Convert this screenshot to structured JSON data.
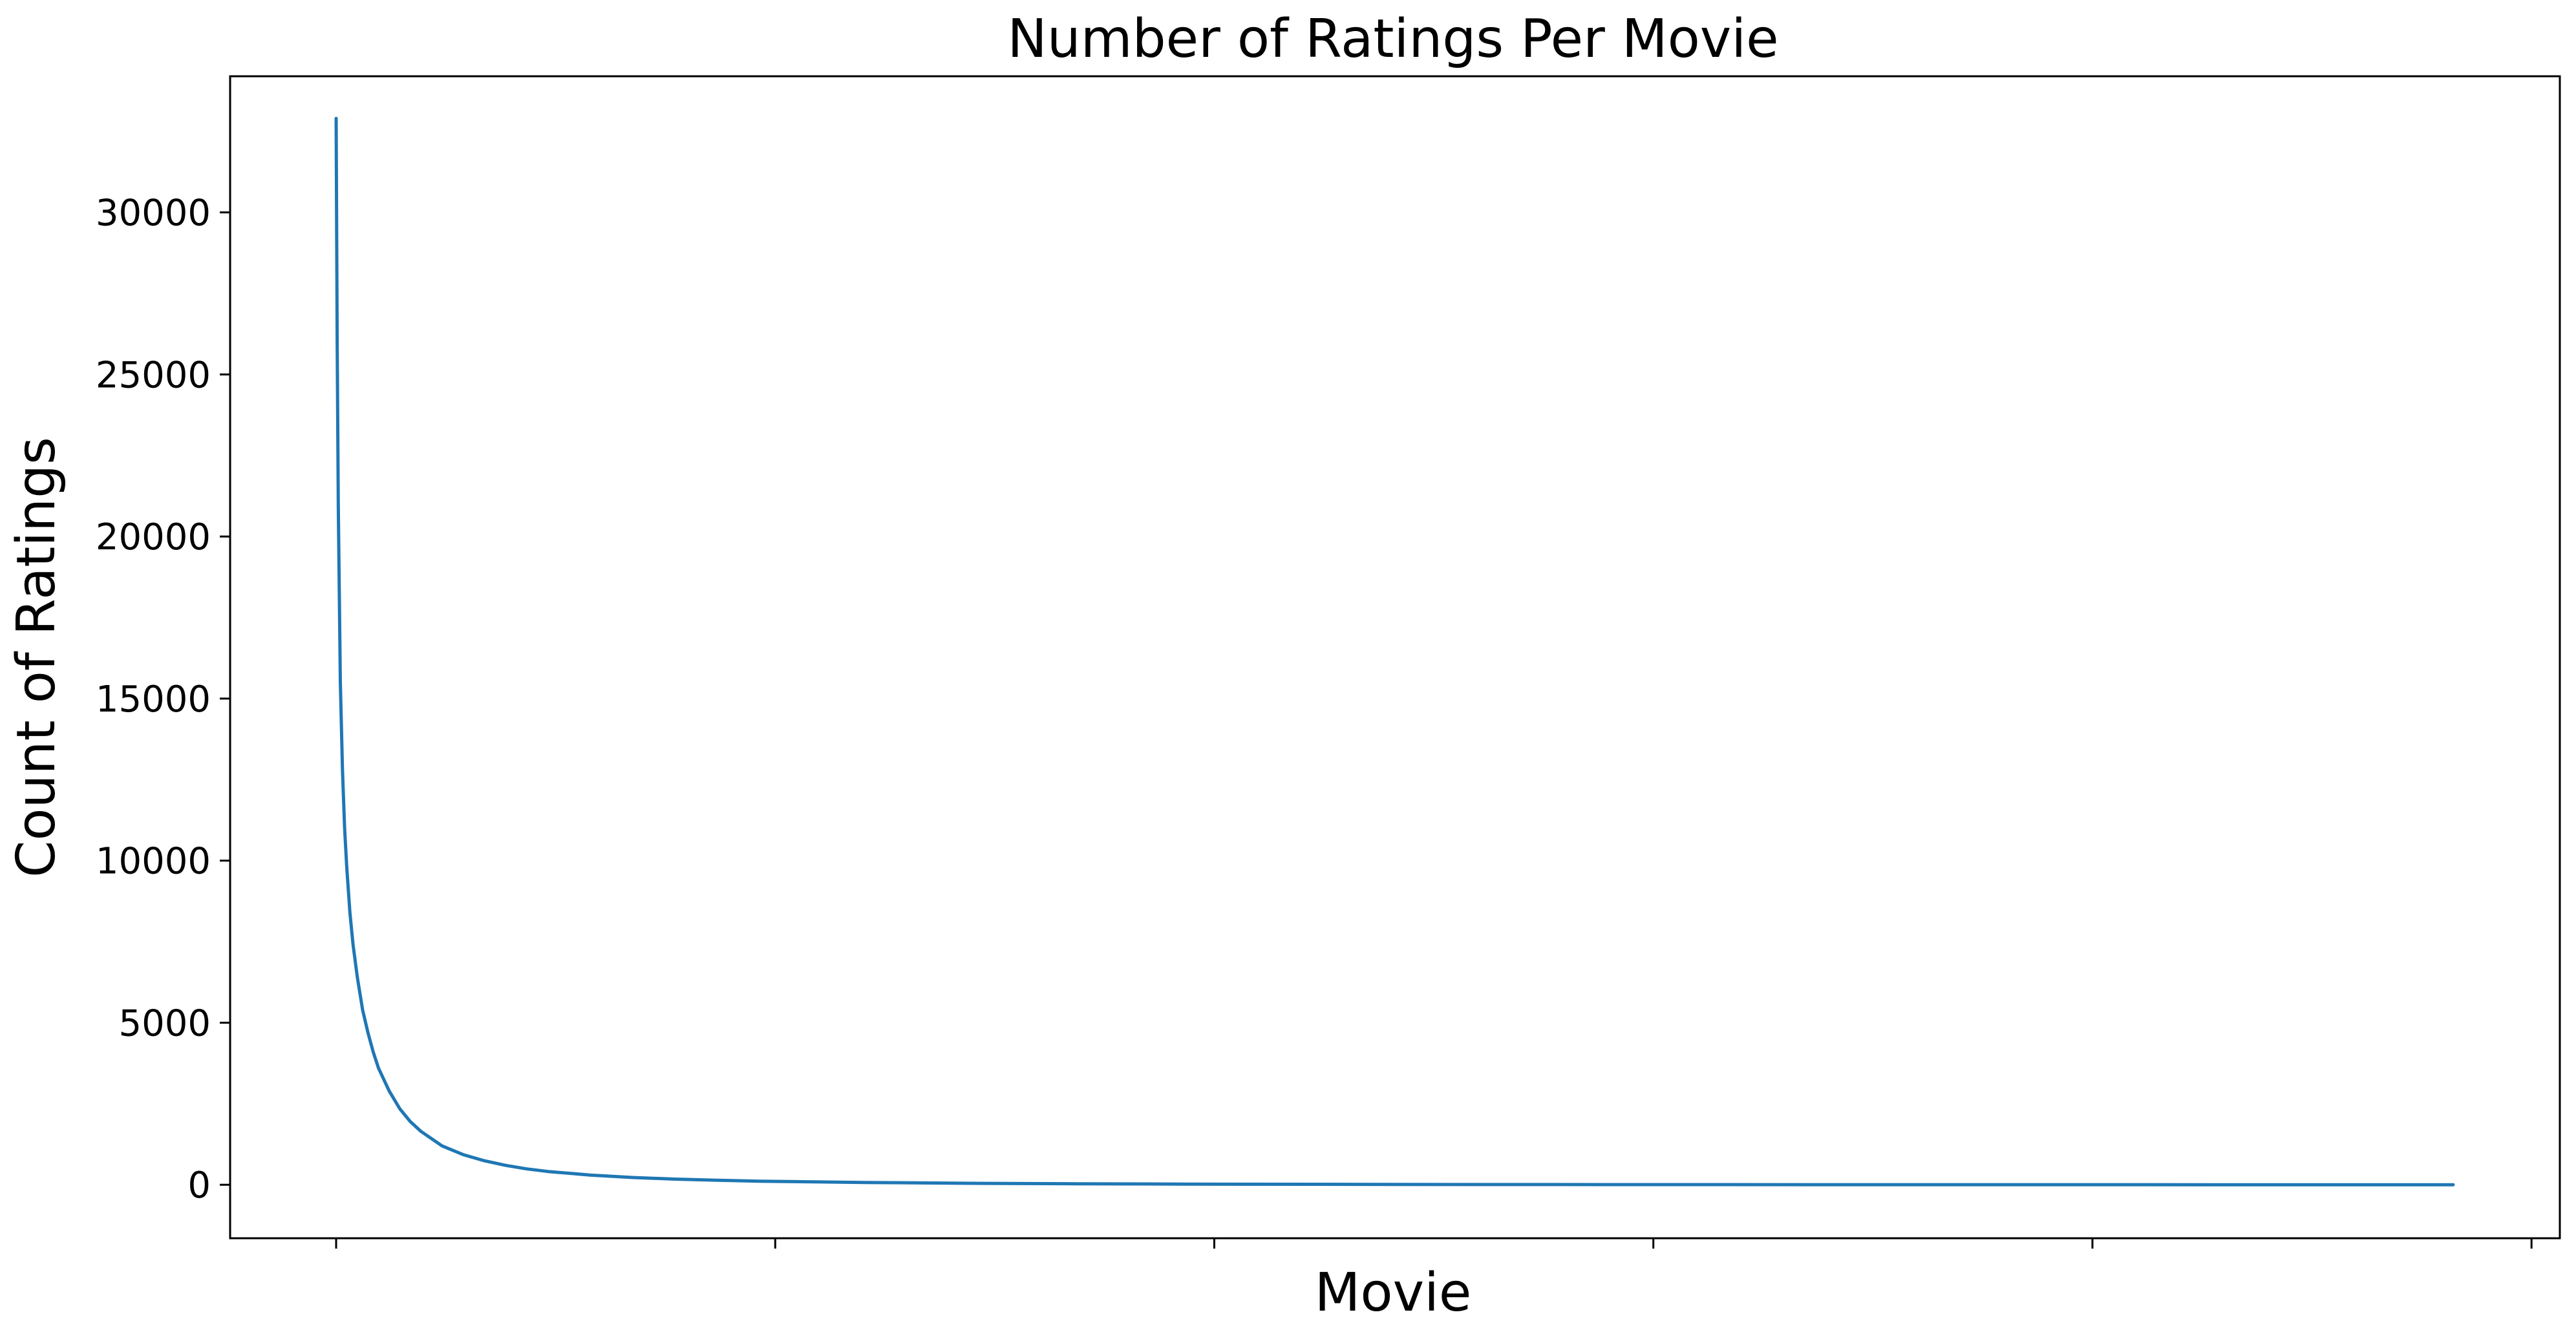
{
  "chart_data": {
    "type": "line",
    "title": "Number of Ratings Per Movie",
    "xlabel": "Movie",
    "ylabel": "Count of Ratings",
    "xlim": [
      -0.048,
      1.0
    ],
    "ylim": [
      -1650,
      34200
    ],
    "x_ticks": [
      0,
      0.2074,
      0.4148,
      0.6222,
      0.8296,
      1.037
    ],
    "x_tick_labels": [
      "",
      "",
      "",
      "",
      "",
      ""
    ],
    "y_ticks": [
      0,
      5000,
      10000,
      15000,
      20000,
      25000,
      30000
    ],
    "y_tick_labels": [
      "0",
      "5000",
      "10000",
      "15000",
      "20000",
      "25000",
      "30000"
    ],
    "grid": false,
    "series": [
      {
        "color": "#1f77b4",
        "x": [
          0,
          0.0005,
          0.001,
          0.002,
          0.003,
          0.004,
          0.005,
          0.0065,
          0.008,
          0.01,
          0.0125,
          0.015,
          0.0175,
          0.02,
          0.025,
          0.03,
          0.035,
          0.04,
          0.05,
          0.06,
          0.07,
          0.08,
          0.09,
          0.1,
          0.12,
          0.14,
          0.16,
          0.18,
          0.2,
          0.25,
          0.3,
          0.35,
          0.4,
          0.5,
          0.6,
          0.7,
          0.8,
          0.9,
          1.0
        ],
        "y": [
          32900,
          26000,
          21000,
          15500,
          12800,
          11000,
          9800,
          8400,
          7400,
          6400,
          5400,
          4700,
          4100,
          3600,
          2900,
          2350,
          1950,
          1650,
          1200,
          930,
          740,
          600,
          490,
          410,
          300,
          225,
          175,
          140,
          110,
          70,
          45,
          30,
          20,
          10,
          5,
          3,
          2,
          1,
          1
        ]
      }
    ]
  }
}
